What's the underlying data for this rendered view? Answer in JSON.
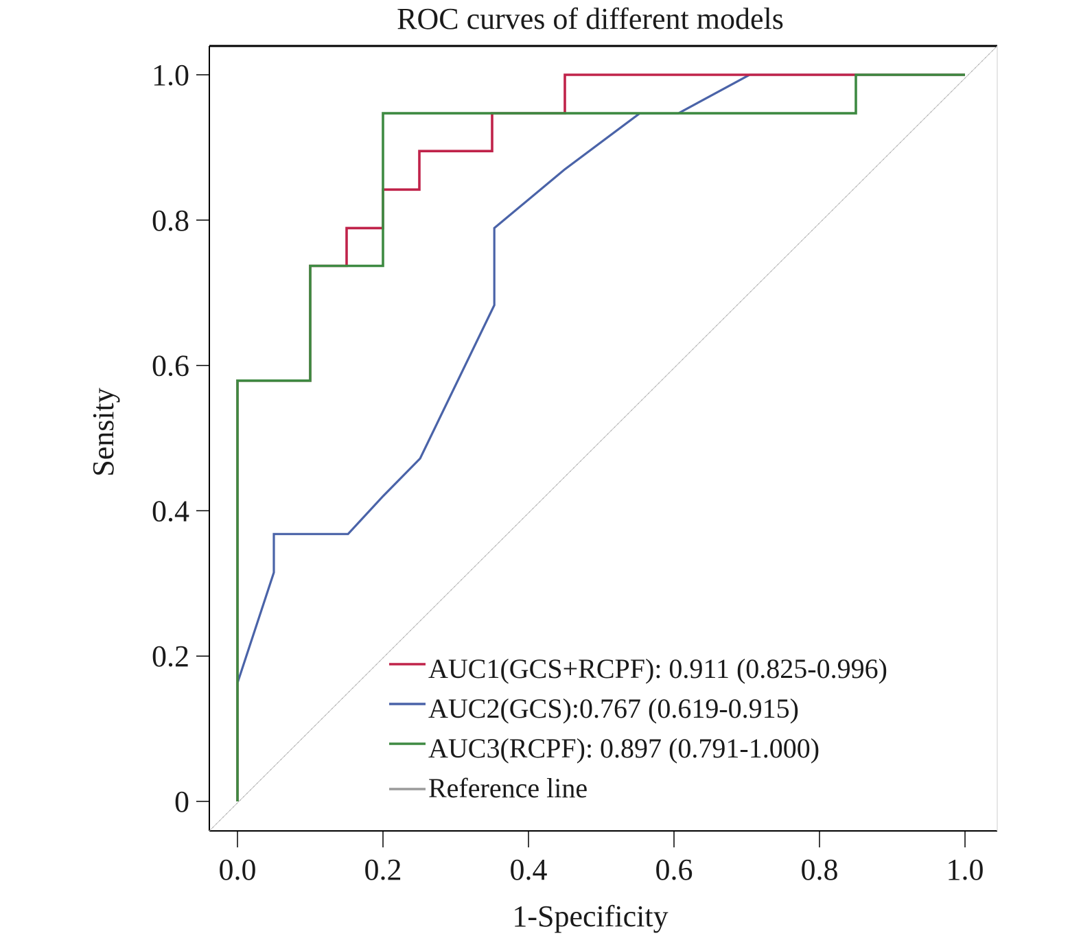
{
  "chart_data": {
    "type": "line",
    "title": "ROC curves of different models",
    "xlabel": "1-Specificity",
    "ylabel": "Sensity",
    "xlim": [
      0,
      1
    ],
    "ylim": [
      0,
      1
    ],
    "x_ticks": [
      0.0,
      0.2,
      0.4,
      0.6,
      0.8,
      1.0
    ],
    "x_tick_labels": [
      "0.0",
      "0.2",
      "0.4",
      "0.6",
      "0.8",
      "1.0"
    ],
    "y_ticks": [
      0,
      0.2,
      0.4,
      0.6,
      0.8,
      1.0
    ],
    "y_tick_labels": [
      "0",
      "0.2",
      "0.4",
      "0.6",
      "0.8",
      "1.0"
    ],
    "grid": false,
    "legend_position": "bottom-right",
    "series": [
      {
        "name": "AUC1(GCS+RCPF): 0.911 (0.825-0.996)",
        "color": "#C0234A",
        "points": [
          [
            0,
            0
          ],
          [
            0,
            0.579
          ],
          [
            0.1,
            0.579
          ],
          [
            0.1,
            0.737
          ],
          [
            0.15,
            0.737
          ],
          [
            0.15,
            0.789
          ],
          [
            0.2,
            0.789
          ],
          [
            0.2,
            0.842
          ],
          [
            0.25,
            0.842
          ],
          [
            0.25,
            0.895
          ],
          [
            0.35,
            0.895
          ],
          [
            0.35,
            0.947
          ],
          [
            0.45,
            0.947
          ],
          [
            0.45,
            1.0
          ],
          [
            1.0,
            1.0
          ]
        ]
      },
      {
        "name": "AUC2(GCS):0.767 (0.619-0.915)",
        "color": "#4A63A8",
        "points": [
          [
            0,
            0
          ],
          [
            0,
            0.163
          ],
          [
            0.05,
            0.315
          ],
          [
            0.05,
            0.368
          ],
          [
            0.152,
            0.368
          ],
          [
            0.2,
            0.42
          ],
          [
            0.251,
            0.472
          ],
          [
            0.353,
            0.683
          ],
          [
            0.353,
            0.789
          ],
          [
            0.45,
            0.87
          ],
          [
            0.553,
            0.947
          ],
          [
            0.606,
            0.947
          ],
          [
            0.704,
            1.0
          ],
          [
            1.0,
            1.0
          ]
        ]
      },
      {
        "name": "AUC3(RCPF): 0.897 (0.791-1.000)",
        "color": "#3E8A42",
        "points": [
          [
            0,
            0
          ],
          [
            0,
            0.579
          ],
          [
            0.1,
            0.579
          ],
          [
            0.1,
            0.737
          ],
          [
            0.2,
            0.737
          ],
          [
            0.2,
            0.947
          ],
          [
            0.85,
            0.947
          ],
          [
            0.85,
            1.0
          ],
          [
            1.0,
            1.0
          ]
        ]
      },
      {
        "name": "Reference line",
        "color": "#9A9A9A",
        "points": "diagonal"
      }
    ]
  }
}
